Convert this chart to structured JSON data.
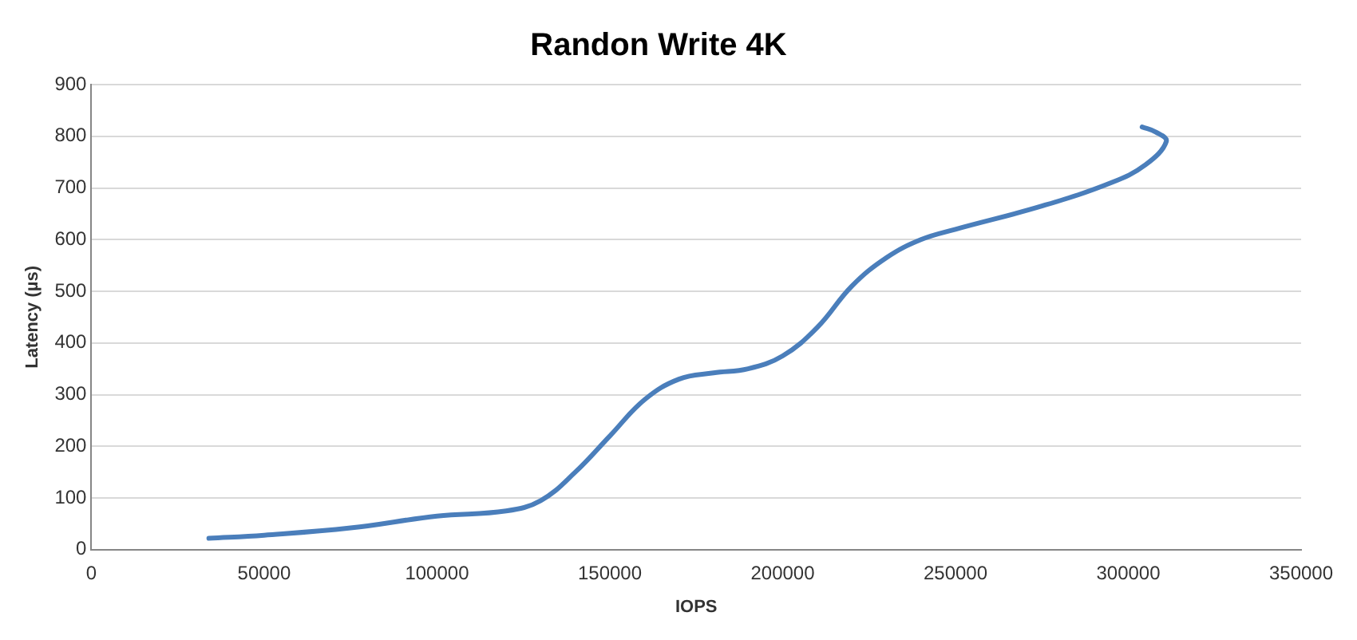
{
  "chart_data": {
    "type": "line",
    "title": "Randon Write 4K",
    "xlabel": "IOPS",
    "ylabel": "Latency (µs)",
    "x": [
      34000,
      50000,
      75000,
      100000,
      120000,
      130000,
      140000,
      150000,
      160000,
      170000,
      180000,
      190000,
      200000,
      210000,
      220000,
      230000,
      240000,
      250000,
      275000,
      295000,
      305000,
      311000,
      308000,
      304000
    ],
    "series": [
      {
        "color": "#4a7ebb",
        "values": [
          22,
          28,
          42,
          65,
          75,
          95,
          150,
          220,
          290,
          330,
          342,
          350,
          375,
          430,
          510,
          565,
          600,
          620,
          665,
          710,
          745,
          790,
          808,
          818
        ]
      }
    ],
    "xlim": [
      0,
      350000
    ],
    "xticks": [
      0,
      50000,
      100000,
      150000,
      200000,
      250000,
      300000,
      350000
    ],
    "ylim": [
      0,
      900
    ],
    "yticks": [
      0,
      100,
      200,
      300,
      400,
      500,
      600,
      700,
      800,
      900
    ],
    "grid": "y",
    "legend": false,
    "marker": "none",
    "line_style": "solid"
  }
}
